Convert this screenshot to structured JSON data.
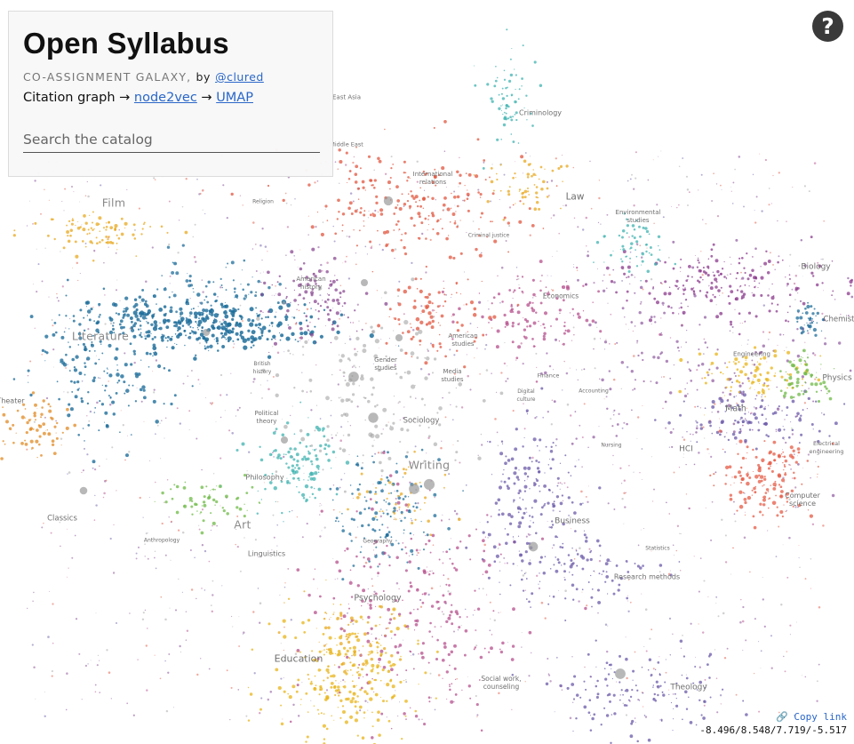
{
  "panel": {
    "title": "Open Syllabus",
    "subtitle": "CO-ASSIGNMENT GALAXY,",
    "by": "by",
    "author": "@clured",
    "pipeline_intro": "Citation graph →",
    "pipeline_step1": "node2vec",
    "pipeline_arrow": "→",
    "pipeline_step2": "UMAP"
  },
  "search": {
    "placeholder": "Search the catalog"
  },
  "help": {
    "label": "?"
  },
  "copy_link": {
    "icon": "link-icon",
    "label": "Copy link"
  },
  "coords": "-8.496/8.548/7.719/-5.517",
  "fields": {
    "film": "Film",
    "literature": "Literature",
    "theater": "Theater",
    "classics": "Classics",
    "art": "Art",
    "linguistics": "Linguistics",
    "philosophy": "Philosophy",
    "writing": "Writing",
    "sociology": "Sociology",
    "psychology": "Psychology",
    "education": "Education",
    "business": "Business",
    "theology": "Theology",
    "law": "Law",
    "criminology": "Criminology",
    "economics": "Economics",
    "biology": "Biology",
    "chemistry": "Chemist",
    "physics": "Physics",
    "math": "Math",
    "engineering": "Engineering",
    "hci": "HCI",
    "computer_science": "Computer science",
    "research_methods": "Research methods",
    "statistics": "Statistics",
    "nursing": "Nursing",
    "finance": "Finance",
    "accounting": "Accounting",
    "media_studies": "Media studies",
    "gender_studies": "Gender studies",
    "american_history": "American history",
    "american_studies": "American studies",
    "international_relations": "International relations",
    "environmental_studies": "Environmental studies",
    "political_theory": "Political theory",
    "social_work": "Social work, counseling",
    "anthropology": "Anthropology",
    "geography": "Geography",
    "electrical_engineering": "Electrical engineering",
    "digital_culture": "Digital culture",
    "east_asia": "East Asia",
    "middle_east": "Middle East",
    "religion": "Religion",
    "british_history": "British history",
    "criminal_justice": "Criminal justice"
  },
  "colors": {
    "literature": "#1f6e9b",
    "film": "#e8a81f",
    "art": "#6dba45",
    "philosophy": "#3fb3b0",
    "international": "#e1553f",
    "history": "#8a4a91",
    "science": "#7a3c8e",
    "sociology": "#a3a3a3",
    "engineering": "#e8b418",
    "cs": "#e55b45",
    "psychology": "#b54f8c",
    "business": "#6b5aa8",
    "biology": "#8b3a8c",
    "education": "#e8b418"
  }
}
